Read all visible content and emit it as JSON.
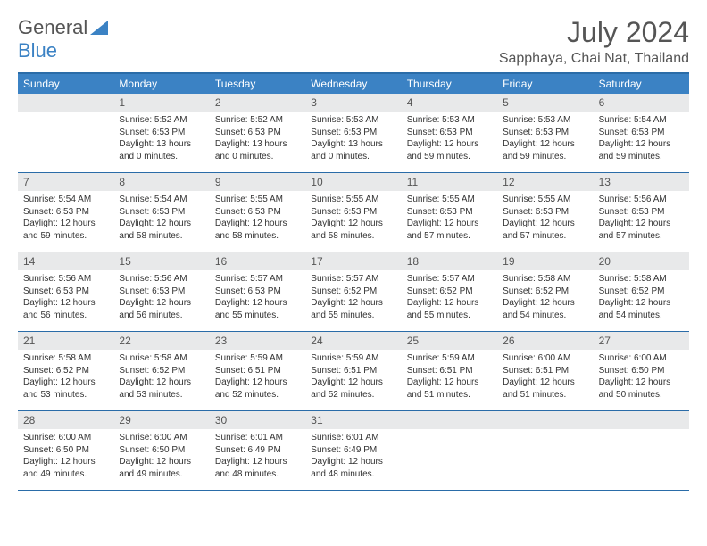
{
  "logo": {
    "text1": "General",
    "text2": "Blue"
  },
  "title": "July 2024",
  "location": "Sapphaya, Chai Nat, Thailand",
  "colors": {
    "header_bg": "#3b82c4",
    "border": "#2a6ca8",
    "daynum_bg": "#e8e9ea",
    "text": "#333333",
    "muted": "#555555"
  },
  "dayNames": [
    "Sunday",
    "Monday",
    "Tuesday",
    "Wednesday",
    "Thursday",
    "Friday",
    "Saturday"
  ],
  "weeks": [
    [
      null,
      {
        "n": "1",
        "sr": "5:52 AM",
        "ss": "6:53 PM",
        "dl": "13 hours and 0 minutes."
      },
      {
        "n": "2",
        "sr": "5:52 AM",
        "ss": "6:53 PM",
        "dl": "13 hours and 0 minutes."
      },
      {
        "n": "3",
        "sr": "5:53 AM",
        "ss": "6:53 PM",
        "dl": "13 hours and 0 minutes."
      },
      {
        "n": "4",
        "sr": "5:53 AM",
        "ss": "6:53 PM",
        "dl": "12 hours and 59 minutes."
      },
      {
        "n": "5",
        "sr": "5:53 AM",
        "ss": "6:53 PM",
        "dl": "12 hours and 59 minutes."
      },
      {
        "n": "6",
        "sr": "5:54 AM",
        "ss": "6:53 PM",
        "dl": "12 hours and 59 minutes."
      }
    ],
    [
      {
        "n": "7",
        "sr": "5:54 AM",
        "ss": "6:53 PM",
        "dl": "12 hours and 59 minutes."
      },
      {
        "n": "8",
        "sr": "5:54 AM",
        "ss": "6:53 PM",
        "dl": "12 hours and 58 minutes."
      },
      {
        "n": "9",
        "sr": "5:55 AM",
        "ss": "6:53 PM",
        "dl": "12 hours and 58 minutes."
      },
      {
        "n": "10",
        "sr": "5:55 AM",
        "ss": "6:53 PM",
        "dl": "12 hours and 58 minutes."
      },
      {
        "n": "11",
        "sr": "5:55 AM",
        "ss": "6:53 PM",
        "dl": "12 hours and 57 minutes."
      },
      {
        "n": "12",
        "sr": "5:55 AM",
        "ss": "6:53 PM",
        "dl": "12 hours and 57 minutes."
      },
      {
        "n": "13",
        "sr": "5:56 AM",
        "ss": "6:53 PM",
        "dl": "12 hours and 57 minutes."
      }
    ],
    [
      {
        "n": "14",
        "sr": "5:56 AM",
        "ss": "6:53 PM",
        "dl": "12 hours and 56 minutes."
      },
      {
        "n": "15",
        "sr": "5:56 AM",
        "ss": "6:53 PM",
        "dl": "12 hours and 56 minutes."
      },
      {
        "n": "16",
        "sr": "5:57 AM",
        "ss": "6:53 PM",
        "dl": "12 hours and 55 minutes."
      },
      {
        "n": "17",
        "sr": "5:57 AM",
        "ss": "6:52 PM",
        "dl": "12 hours and 55 minutes."
      },
      {
        "n": "18",
        "sr": "5:57 AM",
        "ss": "6:52 PM",
        "dl": "12 hours and 55 minutes."
      },
      {
        "n": "19",
        "sr": "5:58 AM",
        "ss": "6:52 PM",
        "dl": "12 hours and 54 minutes."
      },
      {
        "n": "20",
        "sr": "5:58 AM",
        "ss": "6:52 PM",
        "dl": "12 hours and 54 minutes."
      }
    ],
    [
      {
        "n": "21",
        "sr": "5:58 AM",
        "ss": "6:52 PM",
        "dl": "12 hours and 53 minutes."
      },
      {
        "n": "22",
        "sr": "5:58 AM",
        "ss": "6:52 PM",
        "dl": "12 hours and 53 minutes."
      },
      {
        "n": "23",
        "sr": "5:59 AM",
        "ss": "6:51 PM",
        "dl": "12 hours and 52 minutes."
      },
      {
        "n": "24",
        "sr": "5:59 AM",
        "ss": "6:51 PM",
        "dl": "12 hours and 52 minutes."
      },
      {
        "n": "25",
        "sr": "5:59 AM",
        "ss": "6:51 PM",
        "dl": "12 hours and 51 minutes."
      },
      {
        "n": "26",
        "sr": "6:00 AM",
        "ss": "6:51 PM",
        "dl": "12 hours and 51 minutes."
      },
      {
        "n": "27",
        "sr": "6:00 AM",
        "ss": "6:50 PM",
        "dl": "12 hours and 50 minutes."
      }
    ],
    [
      {
        "n": "28",
        "sr": "6:00 AM",
        "ss": "6:50 PM",
        "dl": "12 hours and 49 minutes."
      },
      {
        "n": "29",
        "sr": "6:00 AM",
        "ss": "6:50 PM",
        "dl": "12 hours and 49 minutes."
      },
      {
        "n": "30",
        "sr": "6:01 AM",
        "ss": "6:49 PM",
        "dl": "12 hours and 48 minutes."
      },
      {
        "n": "31",
        "sr": "6:01 AM",
        "ss": "6:49 PM",
        "dl": "12 hours and 48 minutes."
      },
      null,
      null,
      null
    ]
  ],
  "labels": {
    "sunrise": "Sunrise:",
    "sunset": "Sunset:",
    "daylight": "Daylight:"
  }
}
